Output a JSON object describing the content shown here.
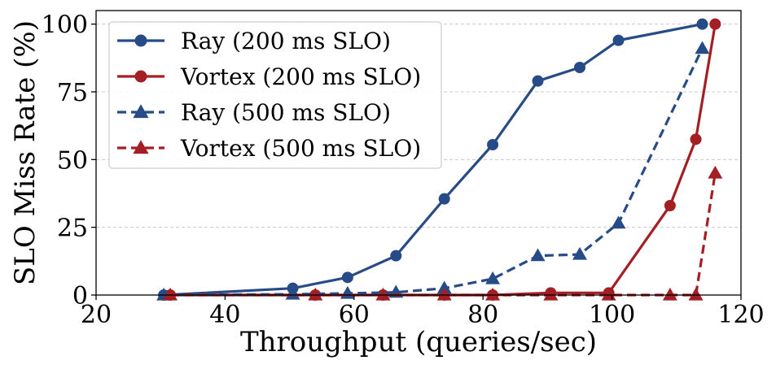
{
  "chart_data": {
    "type": "line",
    "title": "",
    "xlabel": "Throughput (queries/sec)",
    "ylabel": "SLO Miss Rate (%)",
    "xlim": [
      20,
      120
    ],
    "ylim": [
      0,
      105
    ],
    "xticks": [
      20,
      40,
      60,
      80,
      100,
      120
    ],
    "yticks": [
      0,
      25,
      50,
      75,
      100
    ],
    "grid": "y-dashed",
    "legend_position": "top-left",
    "series": [
      {
        "name": "Ray (200 ms SLO)",
        "color": "#274b87",
        "line": "solid",
        "marker": "circle",
        "x": [
          30.5,
          50.5,
          59.0,
          66.5,
          74.0,
          81.5,
          88.5,
          95.0,
          101.0,
          114.0
        ],
        "y": [
          0,
          2.5,
          6.5,
          14.5,
          35.5,
          55.5,
          79,
          84,
          94,
          100
        ]
      },
      {
        "name": "Vortex (200 ms SLO)",
        "color": "#a31f24",
        "line": "solid",
        "marker": "circle",
        "x": [
          31.5,
          54.0,
          64.5,
          74.0,
          81.5,
          90.5,
          99.5,
          109.0,
          113.0,
          116.0
        ],
        "y": [
          0,
          0,
          0,
          0,
          0,
          0.8,
          0.8,
          33,
          57.5,
          100
        ]
      },
      {
        "name": "Ray (500 ms SLO)",
        "color": "#274b87",
        "line": "dashed",
        "marker": "triangle",
        "x": [
          30.5,
          50.5,
          59.0,
          66.5,
          74.0,
          81.5,
          88.5,
          95.0,
          101.0,
          114.0
        ],
        "y": [
          0,
          0.3,
          0.6,
          1.0,
          2.5,
          6.0,
          14.5,
          15.0,
          26.5,
          91
        ]
      },
      {
        "name": "Vortex (500 ms SLO)",
        "color": "#a31f24",
        "line": "dashed",
        "marker": "triangle",
        "x": [
          31.5,
          54.0,
          64.5,
          74.0,
          81.5,
          90.5,
          99.5,
          109.0,
          113.0,
          116.0
        ],
        "y": [
          0,
          0,
          0,
          0,
          0,
          0,
          0,
          0,
          0,
          45
        ]
      }
    ]
  }
}
